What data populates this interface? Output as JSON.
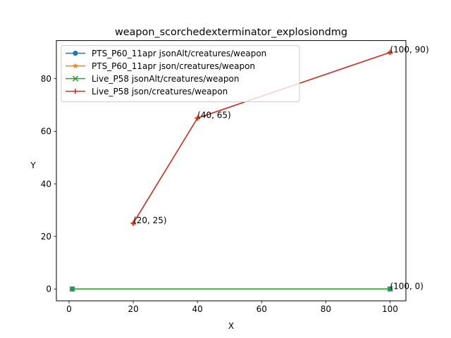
{
  "chart_data": {
    "type": "line",
    "title": "weapon_scorchedexterminator_explosiondmg",
    "xlabel": "X",
    "ylabel": "Y",
    "xlim": [
      -3.95,
      104.95
    ],
    "ylim": [
      -4.5,
      94.5
    ],
    "xticks": [
      0,
      20,
      40,
      60,
      80,
      100
    ],
    "yticks": [
      0,
      20,
      40,
      60,
      80
    ],
    "grid": false,
    "legend_position": "top-left",
    "series": [
      {
        "name": "PTS_P60_11apr jsonAlt/creatures/weapon",
        "color": "#1f77b4",
        "marker": "circle",
        "x": [
          1,
          100
        ],
        "y": [
          0,
          0
        ]
      },
      {
        "name": "PTS_P60_11apr json/creatures/weapon",
        "color": "#ff7f0e",
        "marker": "star",
        "x": [
          20,
          40,
          100
        ],
        "y": [
          25,
          65,
          90
        ]
      },
      {
        "name": "Live_P58 jsonAlt/creatures/weapon",
        "color": "#2ca02c",
        "marker": "x",
        "x": [
          1,
          100
        ],
        "y": [
          0,
          0
        ]
      },
      {
        "name": "Live_P58 json/creatures/weapon",
        "color": "#d62728",
        "marker": "plus",
        "x": [
          20,
          40,
          100
        ],
        "y": [
          25,
          65,
          90
        ]
      }
    ],
    "annotations": [
      {
        "text": "(20, 25)",
        "x": 20,
        "y": 25
      },
      {
        "text": "(40, 65)",
        "x": 40,
        "y": 65
      },
      {
        "text": "(100, 90)",
        "x": 100,
        "y": 90
      },
      {
        "text": "(100, 0)",
        "x": 100,
        "y": 0
      }
    ]
  }
}
